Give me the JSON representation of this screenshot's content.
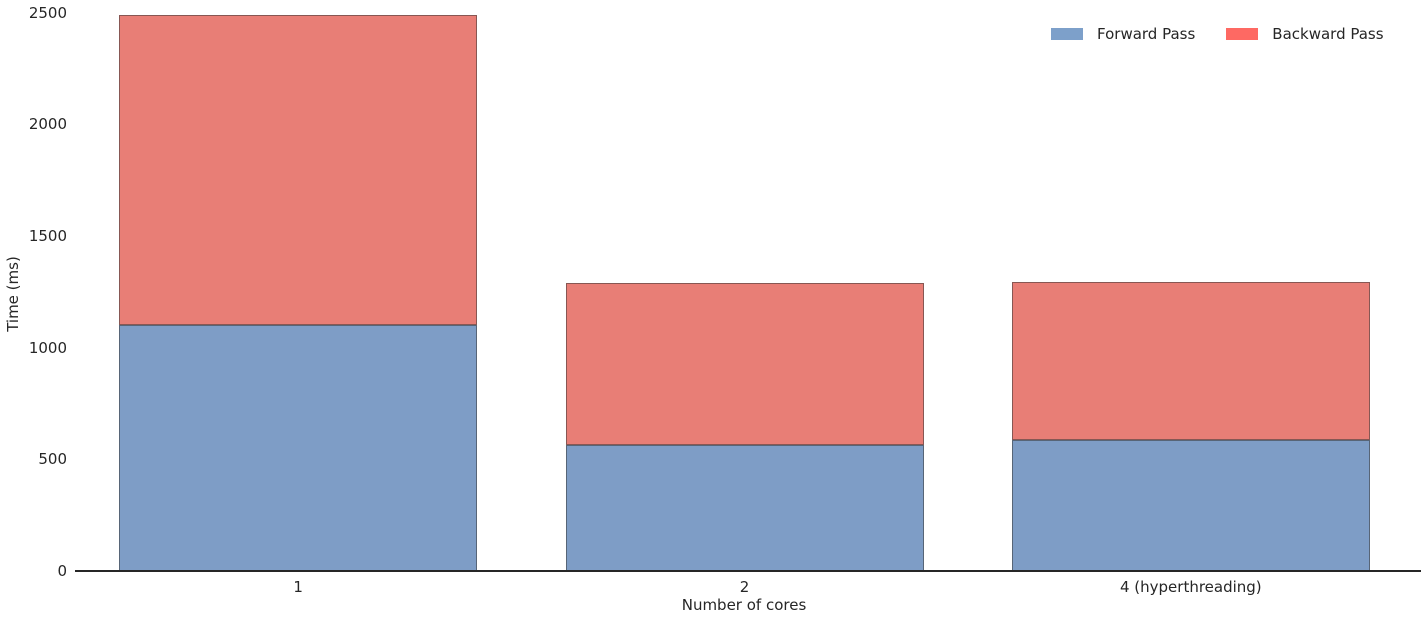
{
  "chart_data": {
    "type": "bar",
    "stacked": true,
    "title": "",
    "xlabel": "Number of cores",
    "ylabel": "Time (ms)",
    "categories": [
      "1",
      "2",
      "4 (hyperthreading)"
    ],
    "series": [
      {
        "name": "Forward Pass",
        "values": [
          1100,
          565,
          585
        ],
        "color": "#7e9dc6",
        "legend_color": "#7da0ca"
      },
      {
        "name": "Backward Pass",
        "values": [
          1390,
          725,
          710
        ],
        "color": "#e87e76",
        "legend_color": "#fe6963"
      }
    ],
    "totals": [
      2490,
      1290,
      1295
    ],
    "ylim": [
      0,
      2500
    ],
    "yticks": [
      0,
      500,
      1000,
      1500,
      2000,
      2500
    ],
    "grid": false,
    "legend_position": "top-right",
    "axis_color": "#262626",
    "text_color": "#262626",
    "background_color": "#ffffff"
  }
}
